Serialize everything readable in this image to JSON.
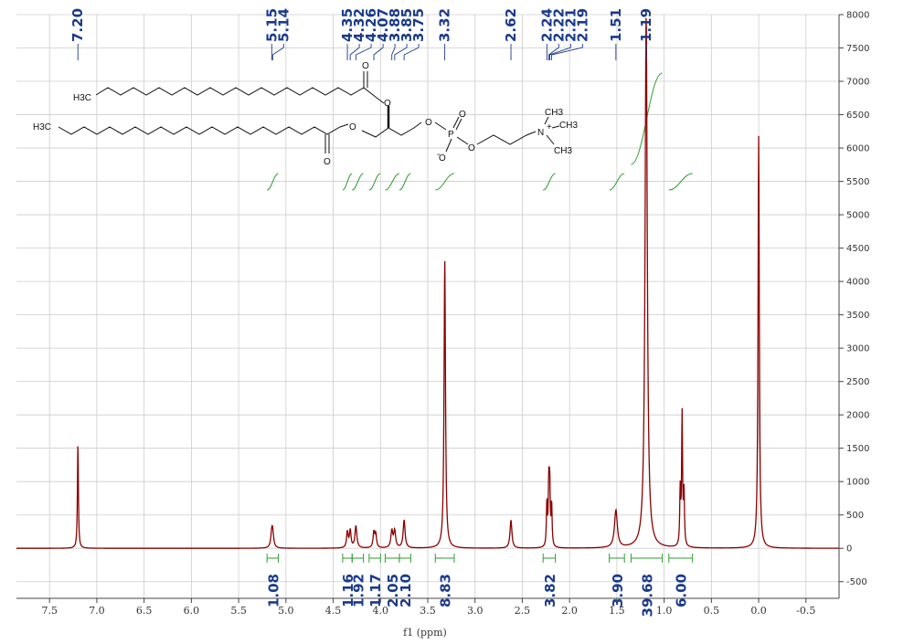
{
  "chart_data": {
    "type": "line",
    "title": "",
    "xlabel": "f1 (ppm)",
    "ylabel": "",
    "xlim": [
      7.85,
      -0.85
    ],
    "x_reversed": true,
    "ylim": [
      -750,
      8000
    ],
    "x_ticks": [
      7.5,
      7.0,
      6.5,
      6.0,
      5.5,
      5.0,
      4.5,
      4.0,
      3.5,
      3.0,
      2.5,
      2.0,
      1.5,
      1.0,
      0.5,
      0.0,
      -0.5
    ],
    "y_ticks": [
      -500,
      0,
      500,
      1000,
      1500,
      2000,
      2500,
      3000,
      3500,
      4000,
      4500,
      5000,
      5500,
      6000,
      6500,
      7000,
      7500,
      8000
    ],
    "grid": true,
    "colors": {
      "spectrum": "#8b0000",
      "integral": "#2e9e2e",
      "labels": "#1a3a8c",
      "grid": "#cccccc"
    },
    "series": [
      {
        "peaks": [
          {
            "ppm": 7.2,
            "height": 1560,
            "width": 0.006
          },
          {
            "ppm": 5.15,
            "height": 200,
            "width": 0.012
          },
          {
            "ppm": 5.14,
            "height": 200,
            "width": 0.012
          },
          {
            "ppm": 4.35,
            "height": 240,
            "width": 0.01
          },
          {
            "ppm": 4.32,
            "height": 260,
            "width": 0.01
          },
          {
            "ppm": 4.26,
            "height": 330,
            "width": 0.012
          },
          {
            "ppm": 4.07,
            "height": 230,
            "width": 0.01
          },
          {
            "ppm": 4.05,
            "height": 200,
            "width": 0.01
          },
          {
            "ppm": 3.88,
            "height": 250,
            "width": 0.012
          },
          {
            "ppm": 3.85,
            "height": 250,
            "width": 0.012
          },
          {
            "ppm": 3.75,
            "height": 420,
            "width": 0.012
          },
          {
            "ppm": 3.32,
            "height": 4330,
            "width": 0.009
          },
          {
            "ppm": 2.62,
            "height": 420,
            "width": 0.012
          },
          {
            "ppm": 2.24,
            "height": 650,
            "width": 0.006
          },
          {
            "ppm": 2.22,
            "height": 910,
            "width": 0.006
          },
          {
            "ppm": 2.21,
            "height": 900,
            "width": 0.006
          },
          {
            "ppm": 2.19,
            "height": 620,
            "width": 0.006
          },
          {
            "ppm": 1.51,
            "height": 560,
            "width": 0.018
          },
          {
            "ppm": 1.19,
            "height": 8000,
            "width": 0.014
          },
          {
            "ppm": 0.83,
            "height": 820,
            "width": 0.006
          },
          {
            "ppm": 0.81,
            "height": 1960,
            "width": 0.006
          },
          {
            "ppm": 0.79,
            "height": 780,
            "width": 0.006
          },
          {
            "ppm": 0.0,
            "height": 6180,
            "width": 0.008
          }
        ]
      }
    ],
    "peak_labels": [
      {
        "ppm": 7.2,
        "text": "7.20"
      },
      {
        "ppm": 5.15,
        "text": "5.15"
      },
      {
        "ppm": 5.14,
        "text": "5.14"
      },
      {
        "ppm": 4.35,
        "text": "4.35"
      },
      {
        "ppm": 4.32,
        "text": "4.32"
      },
      {
        "ppm": 4.26,
        "text": "4.26"
      },
      {
        "ppm": 4.07,
        "text": "4.07"
      },
      {
        "ppm": 3.88,
        "text": "3.88"
      },
      {
        "ppm": 3.85,
        "text": "3.85"
      },
      {
        "ppm": 3.75,
        "text": "3.75"
      },
      {
        "ppm": 3.32,
        "text": "3.32"
      },
      {
        "ppm": 2.62,
        "text": "2.62"
      },
      {
        "ppm": 2.24,
        "text": "2.24"
      },
      {
        "ppm": 2.22,
        "text": "2.22"
      },
      {
        "ppm": 2.21,
        "text": "2.21"
      },
      {
        "ppm": 2.19,
        "text": "2.19"
      },
      {
        "ppm": 1.51,
        "text": "1.51"
      },
      {
        "ppm": 1.19,
        "text": "1.19"
      }
    ],
    "integrals": [
      {
        "from": 5.2,
        "to": 5.08,
        "value": "1.08"
      },
      {
        "from": 4.4,
        "to": 4.3,
        "value": "1.16"
      },
      {
        "from": 4.3,
        "to": 4.18,
        "value": "1.92"
      },
      {
        "from": 4.12,
        "to": 4.0,
        "value": "1.17"
      },
      {
        "from": 3.95,
        "to": 3.8,
        "value": "2.05"
      },
      {
        "from": 3.8,
        "to": 3.68,
        "value": "2.10"
      },
      {
        "from": 3.42,
        "to": 3.22,
        "value": "8.83"
      },
      {
        "from": 2.28,
        "to": 2.15,
        "value": "3.82"
      },
      {
        "from": 1.58,
        "to": 1.42,
        "value": "3.90"
      },
      {
        "from": 1.35,
        "to": 1.02,
        "value": "39.68"
      },
      {
        "from": 0.95,
        "to": 0.7,
        "value": "6.00"
      }
    ]
  },
  "molecule": {
    "labels": [
      "H3C",
      "H3C",
      "O",
      "O",
      "O",
      "O",
      "O",
      "P",
      "O",
      "O",
      "O",
      "N",
      "CH3",
      "CH3",
      "CH3"
    ]
  }
}
